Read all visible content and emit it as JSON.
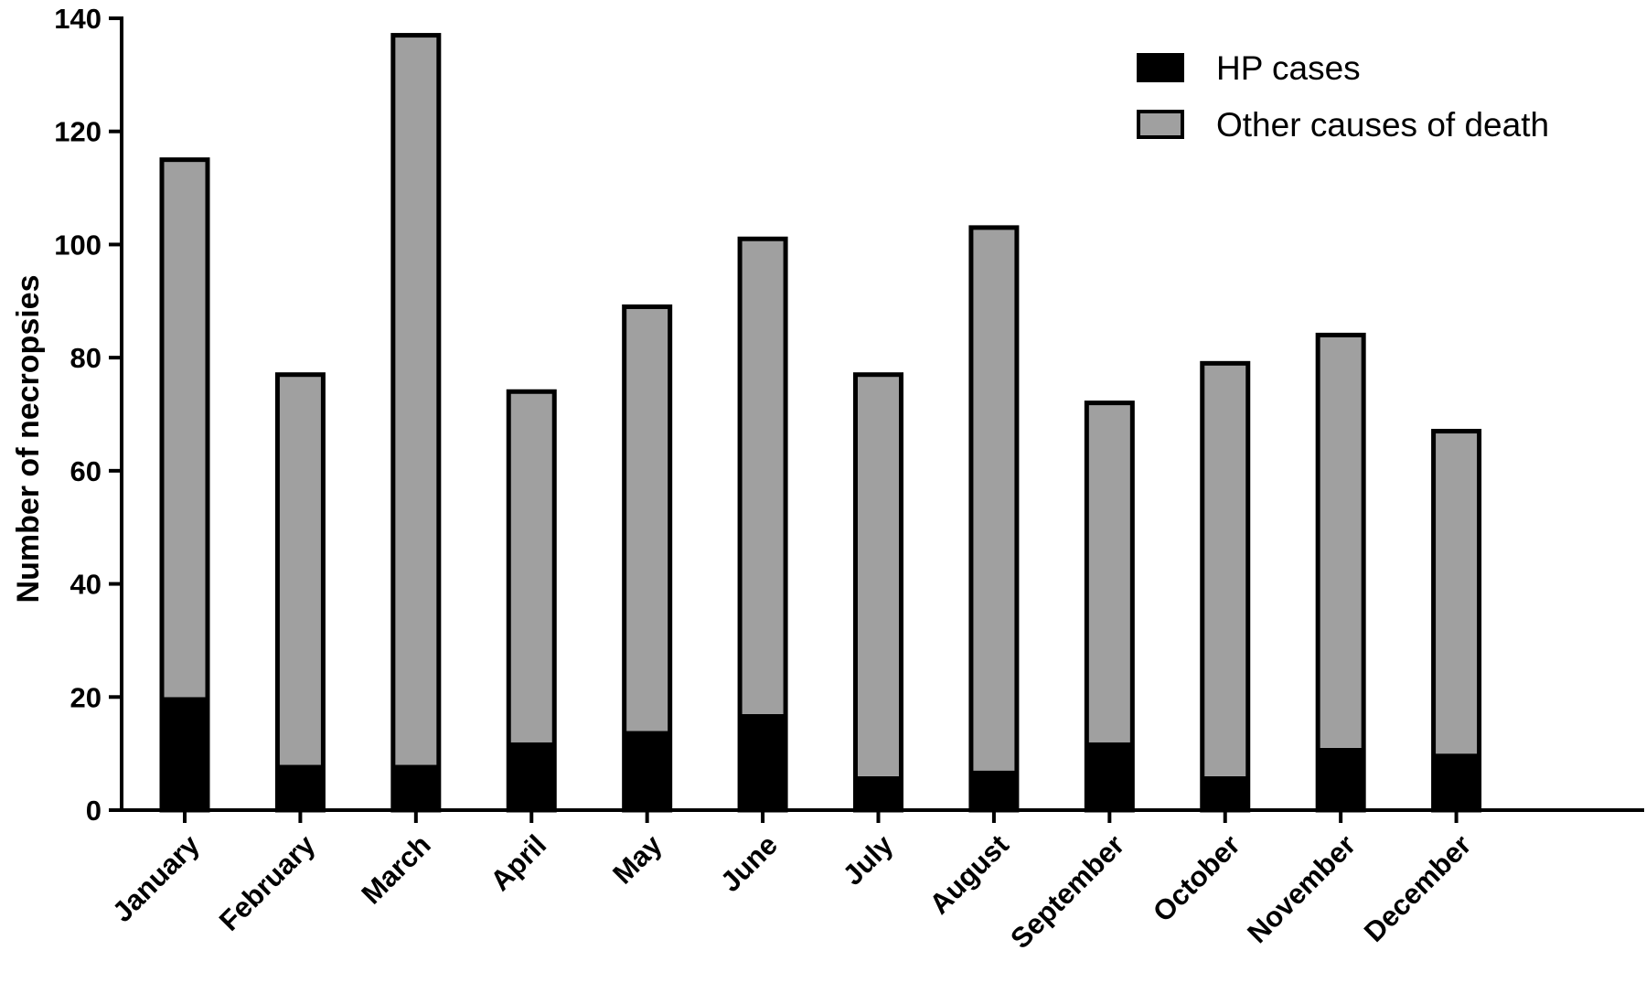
{
  "chart_data": {
    "type": "bar",
    "stacked": true,
    "categories": [
      "January",
      "February",
      "March",
      "April",
      "May",
      "June",
      "July",
      "August",
      "September",
      "October",
      "November",
      "December"
    ],
    "series": [
      {
        "name": "HP cases",
        "color": "#000000",
        "values": [
          20,
          8,
          8,
          12,
          14,
          17,
          6,
          7,
          12,
          6,
          11,
          10
        ]
      },
      {
        "name": "Other causes of death",
        "color": "#a0a0a0",
        "values": [
          95,
          69,
          129,
          62,
          75,
          84,
          71,
          96,
          60,
          73,
          73,
          57
        ]
      }
    ],
    "xlabel": "",
    "ylabel": "Number of necropsies",
    "ylim": [
      0,
      140
    ],
    "yticks": [
      0,
      20,
      40,
      60,
      80,
      100,
      120,
      140
    ],
    "grid": false,
    "legend_position": "top-right"
  }
}
